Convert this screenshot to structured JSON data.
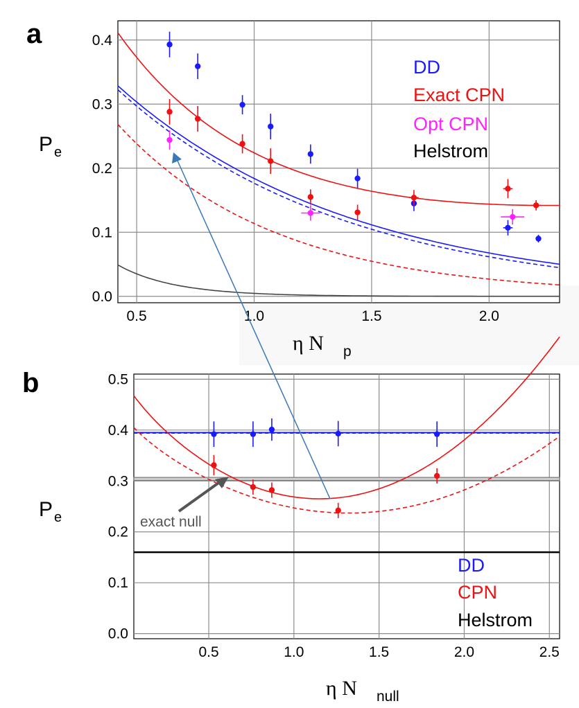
{
  "chart_data": [
    {
      "panel": "a",
      "type": "scatter",
      "xlabel": {
        "symbol": "η N",
        "sub": "p"
      },
      "ylabel": {
        "symbol": "P",
        "sub": "e"
      },
      "xlim": [
        0.42,
        2.3
      ],
      "ylim": [
        -0.01,
        0.43
      ],
      "xticks": [
        0.5,
        1.0,
        1.5,
        2.0
      ],
      "xtick_labels": [
        "0.5",
        "1.0",
        "1.5",
        "2.0"
      ],
      "yticks": [
        0.0,
        0.1,
        0.2,
        0.3,
        0.4
      ],
      "ytick_labels": [
        "0.0",
        "0.1",
        "0.2",
        "0.3",
        "0.4"
      ],
      "grid": true,
      "legend": [
        {
          "label": "DD",
          "color": "#1a1aff"
        },
        {
          "label": "Exact CPN",
          "color": "#ee1111"
        },
        {
          "label": "Opt CPN",
          "color": "#ff22ff"
        },
        {
          "label": "Helstrom",
          "color": "#000000"
        }
      ],
      "series": [
        {
          "name": "DD",
          "color": "#1a1aff",
          "x": [
            0.64,
            0.76,
            0.95,
            1.07,
            1.24,
            1.44,
            1.68,
            2.08,
            2.21
          ],
          "y": [
            0.393,
            0.359,
            0.299,
            0.265,
            0.222,
            0.184,
            0.145,
            0.107,
            0.09
          ],
          "xerr": [
            0.01,
            0.01,
            0.01,
            0.01,
            0.01,
            0.01,
            0.01,
            0.02,
            0.01
          ],
          "yerr": [
            0.02,
            0.02,
            0.015,
            0.02,
            0.015,
            0.015,
            0.012,
            0.012,
            0.006
          ]
        },
        {
          "name": "Exact CPN",
          "color": "#ee1111",
          "x": [
            0.64,
            0.76,
            0.95,
            1.07,
            1.24,
            1.44,
            1.68,
            2.08,
            2.2
          ],
          "y": [
            0.288,
            0.277,
            0.238,
            0.211,
            0.155,
            0.131,
            0.154,
            0.168,
            0.142
          ],
          "xerr": [
            0.01,
            0.01,
            0.01,
            0.01,
            0.01,
            0.01,
            0.02,
            0.02,
            0.02
          ],
          "yerr": [
            0.02,
            0.02,
            0.015,
            0.02,
            0.012,
            0.012,
            0.012,
            0.015,
            0.008
          ]
        },
        {
          "name": "Opt CPN",
          "color": "#ff22ff",
          "x": [
            0.64,
            1.24,
            2.1
          ],
          "y": [
            0.244,
            0.13,
            0.124
          ],
          "xerr": [
            0.01,
            0.04,
            0.05
          ],
          "yerr": [
            0.015,
            0.012,
            0.012
          ]
        }
      ]
    },
    {
      "panel": "b",
      "type": "scatter",
      "xlabel": {
        "symbol": "η N",
        "sub": "null"
      },
      "ylabel": {
        "symbol": "P",
        "sub": "e"
      },
      "xlim": [
        0.06,
        2.56
      ],
      "ylim": [
        -0.01,
        0.51
      ],
      "xticks": [
        0.5,
        1.0,
        1.5,
        2.0,
        2.5
      ],
      "xtick_labels": [
        "0.5",
        "1.0",
        "1.5",
        "2.0",
        "2.5"
      ],
      "yticks": [
        0.0,
        0.1,
        0.2,
        0.3,
        0.4,
        0.5
      ],
      "ytick_labels": [
        "0.0",
        "0.1",
        "0.2",
        "0.3",
        "0.4",
        "0.5"
      ],
      "grid": true,
      "legend": [
        {
          "label": "DD",
          "color": "#1a1aff"
        },
        {
          "label": "CPN",
          "color": "#ee1111"
        },
        {
          "label": "Helstrom",
          "color": "#000000"
        }
      ],
      "annotation": "exact null",
      "reference_lines": {
        "DD": 0.395,
        "exact_null_band": [
          0.301,
          0.307
        ],
        "Helstrom": 0.16
      },
      "series": [
        {
          "name": "DD",
          "color": "#1a1aff",
          "x": [
            0.53,
            0.76,
            0.87,
            1.26,
            1.84
          ],
          "y": [
            0.392,
            0.392,
            0.401,
            0.393,
            0.392
          ],
          "yerr": [
            0.025,
            0.025,
            0.022,
            0.025,
            0.025
          ]
        },
        {
          "name": "CPN",
          "color": "#ee1111",
          "x": [
            0.53,
            0.76,
            0.87,
            1.26,
            1.84
          ],
          "y": [
            0.331,
            0.288,
            0.282,
            0.242,
            0.31
          ],
          "yerr": [
            0.02,
            0.015,
            0.015,
            0.015,
            0.015
          ]
        }
      ]
    }
  ]
}
